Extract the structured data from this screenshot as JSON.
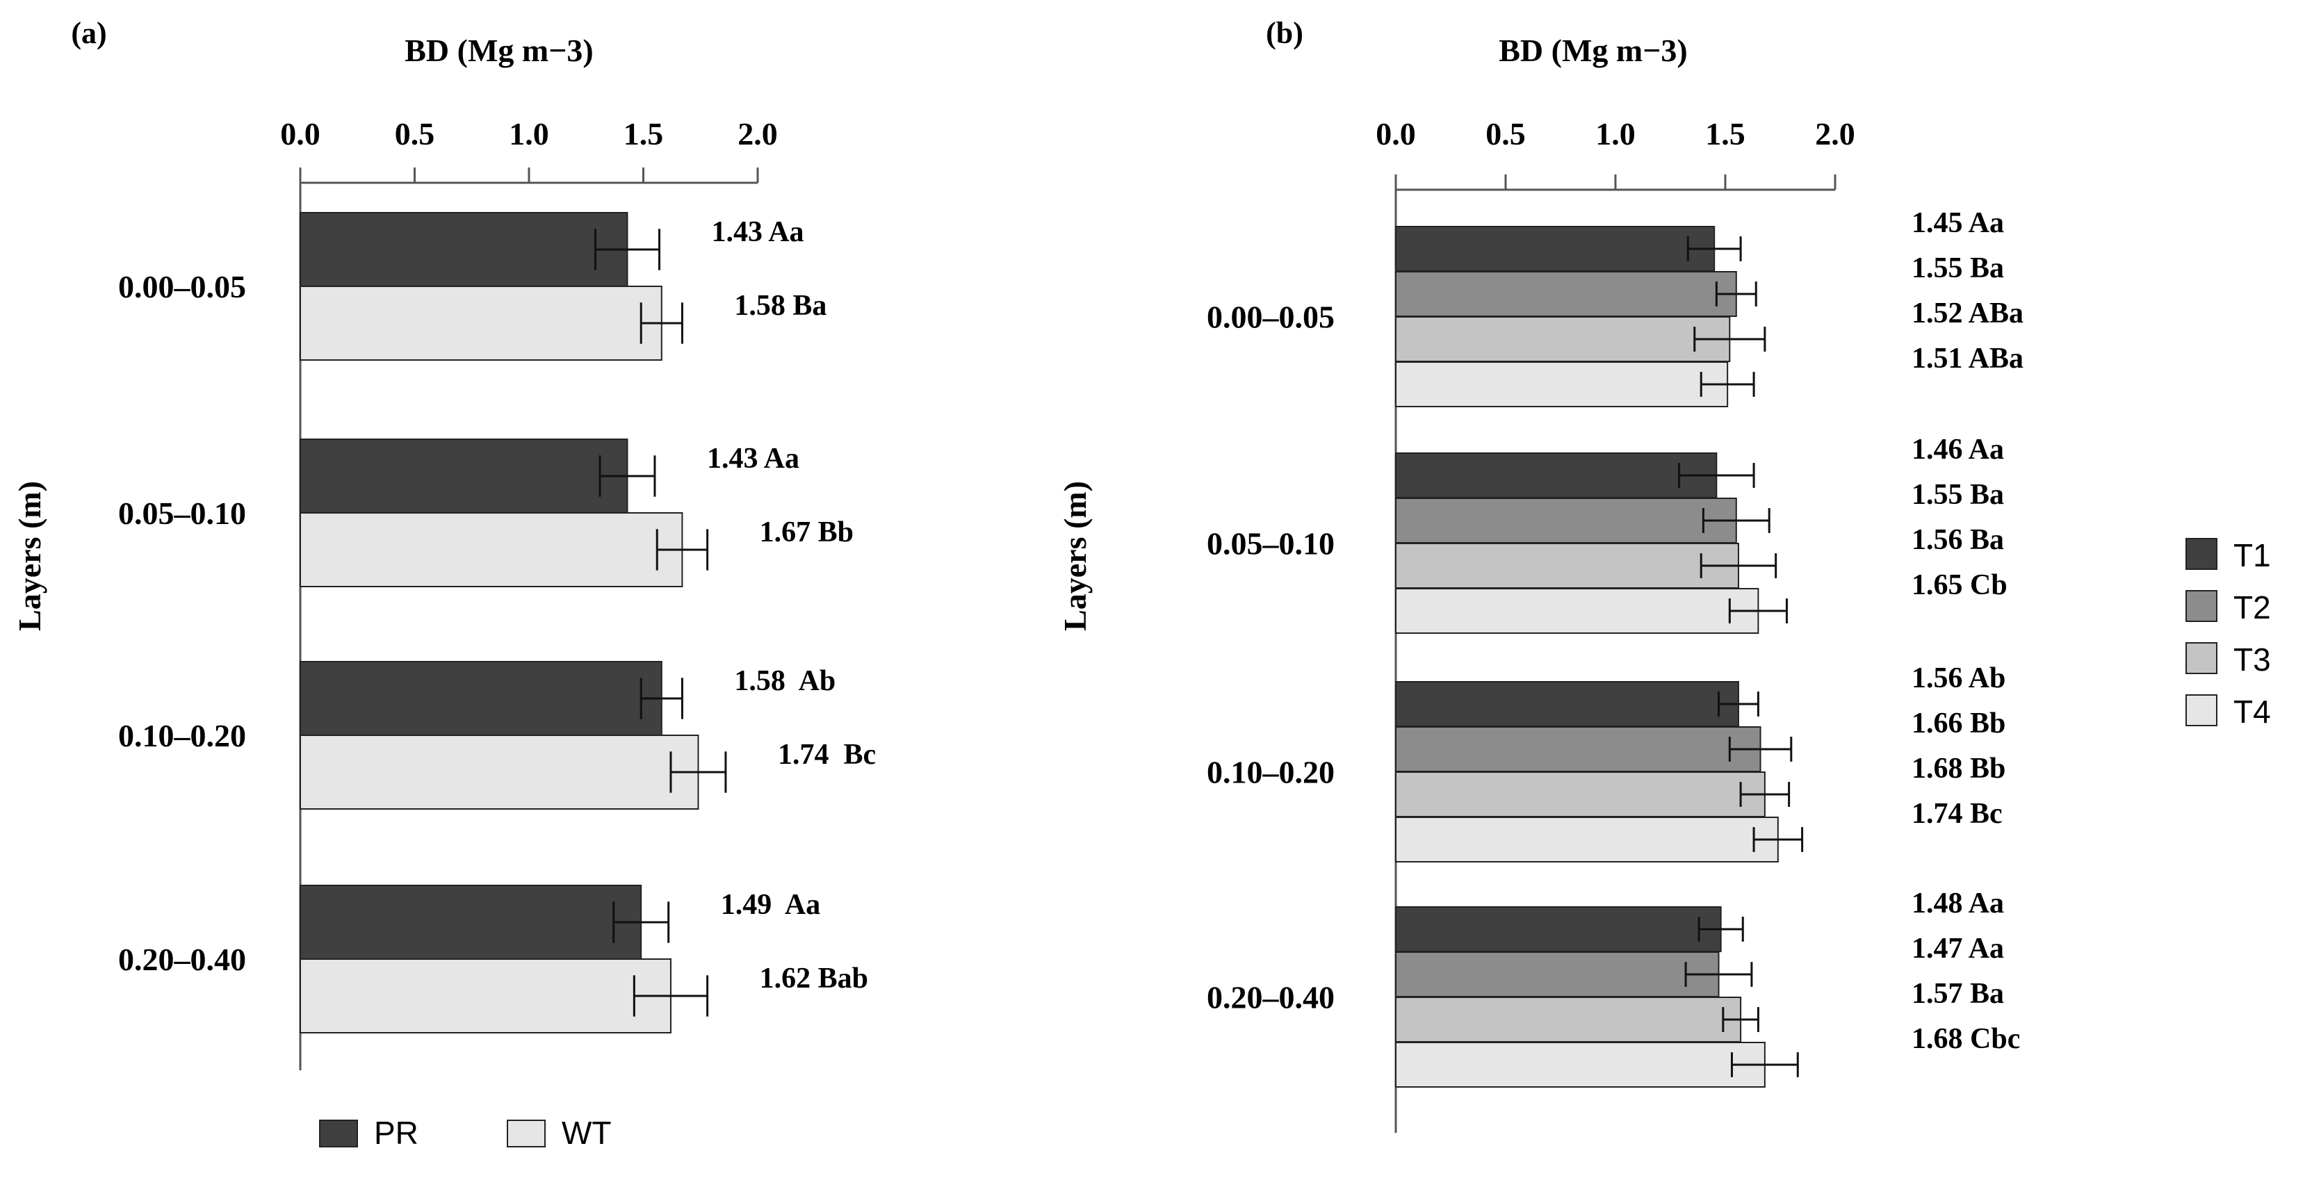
{
  "colors": {
    "PR": "#404040",
    "WT": "#e6e6e6",
    "T1": "#404040",
    "T2": "#8c8c8c",
    "T3": "#c4c4c4",
    "T4": "#e6e6e6"
  },
  "y_axis_label": "Layers (m)",
  "chart_data": [
    {
      "type": "bar",
      "orientation": "horizontal",
      "panel_label": "(a)",
      "title": "BD (Mg m−3)",
      "xlabel": "BD (Mg m−3)",
      "ylabel": "Layers (m)",
      "xlim": [
        0,
        2.0
      ],
      "xticks": [
        "0.0",
        "0.5",
        "1.0",
        "1.5",
        "2.0"
      ],
      "categories": [
        "0.00–0.05",
        "0.05–0.10",
        "0.10–0.20",
        "0.20–0.40"
      ],
      "series": [
        {
          "name": "PR",
          "values": [
            1.43,
            1.43,
            1.58,
            1.49
          ],
          "errors": [
            0.14,
            0.12,
            0.09,
            0.12
          ],
          "labels": [
            "1.43 Aa",
            "1.43 Aa",
            "1.58  Ab",
            "1.49  Aa"
          ]
        },
        {
          "name": "WT",
          "values": [
            1.58,
            1.67,
            1.74,
            1.62
          ],
          "errors": [
            0.09,
            0.11,
            0.12,
            0.16
          ],
          "labels": [
            "1.58 Ba",
            "1.67 Bb",
            "1.74  Bc",
            "1.62 Bab"
          ]
        }
      ],
      "legend": [
        "PR",
        "WT"
      ],
      "legend_position": "bottom"
    },
    {
      "type": "bar",
      "orientation": "horizontal",
      "panel_label": "(b)",
      "title": "BD (Mg m−3)",
      "xlabel": "BD (Mg m−3)",
      "ylabel": "Layers (m)",
      "xlim": [
        0,
        2.0
      ],
      "xticks": [
        "0.0",
        "0.5",
        "1.0",
        "1.5",
        "2.0"
      ],
      "categories": [
        "0.00–0.05",
        "0.05–0.10",
        "0.10–0.20",
        "0.20–0.40"
      ],
      "series": [
        {
          "name": "T1",
          "values": [
            1.45,
            1.46,
            1.56,
            1.48
          ],
          "errors": [
            0.12,
            0.17,
            0.09,
            0.1
          ],
          "labels": [
            "1.45 Aa",
            "1.46 Aa",
            "1.56 Ab",
            "1.48 Aa"
          ]
        },
        {
          "name": "T2",
          "values": [
            1.55,
            1.55,
            1.66,
            1.47
          ],
          "errors": [
            0.09,
            0.15,
            0.14,
            0.15
          ],
          "labels": [
            "1.55 Ba",
            "1.55 Ba",
            "1.66 Bb",
            "1.47 Aa"
          ]
        },
        {
          "name": "T3",
          "values": [
            1.52,
            1.56,
            1.68,
            1.57
          ],
          "errors": [
            0.16,
            0.17,
            0.11,
            0.08
          ],
          "labels": [
            "1.52 ABa",
            "1.56 Ba",
            "1.68 Bb",
            "1.57 Ba"
          ]
        },
        {
          "name": "T4",
          "values": [
            1.51,
            1.65,
            1.74,
            1.68
          ],
          "errors": [
            0.12,
            0.13,
            0.11,
            0.15
          ],
          "labels": [
            "1.51 ABa",
            "1.65 Cb",
            "1.74 Bc",
            "1.68 Cbc"
          ]
        }
      ],
      "legend": [
        "T1",
        "T2",
        "T3",
        "T4"
      ],
      "legend_position": "right"
    }
  ]
}
